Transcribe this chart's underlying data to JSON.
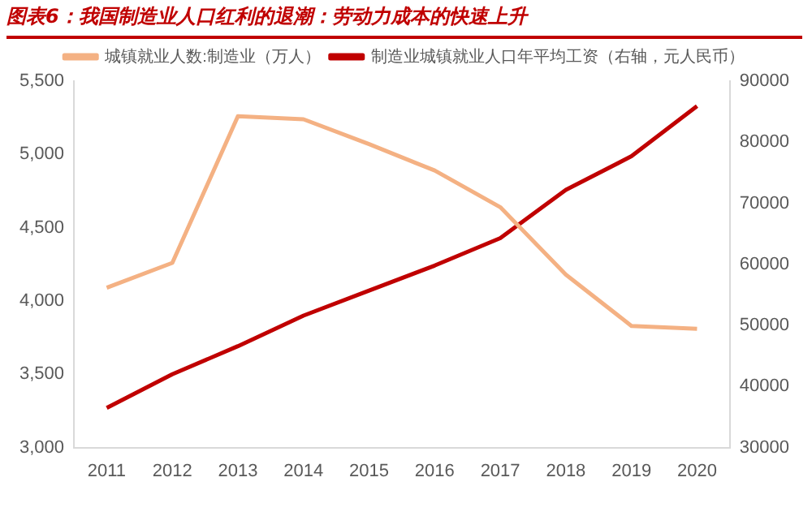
{
  "chart_data": {
    "type": "line",
    "title": "图表6：我国制造业人口红利的退潮：劳动力成本的快速上升",
    "categories": [
      "2011",
      "2012",
      "2013",
      "2014",
      "2015",
      "2016",
      "2017",
      "2018",
      "2019",
      "2020"
    ],
    "series": [
      {
        "name": "城镇就业人数:制造业（万人）",
        "color": "#f4b183",
        "values": [
          4090,
          4260,
          5260,
          5240,
          5070,
          4890,
          4640,
          4180,
          3830,
          3810
        ]
      },
      {
        "name": "制造业城镇就业人口年平均工资（右轴，元人民币）",
        "color": "#c00000",
        "axis": "y2",
        "values": [
          36500,
          42000,
          46600,
          51600,
          55700,
          59800,
          64300,
          72200,
          77700,
          85900
        ]
      }
    ],
    "ylim": [
      3000,
      5500
    ],
    "yticks": [
      {
        "value": 3000,
        "label": "3,000"
      },
      {
        "value": 3500,
        "label": "3,500"
      },
      {
        "value": 4000,
        "label": "4,000"
      },
      {
        "value": 4500,
        "label": "4,500"
      },
      {
        "value": 5000,
        "label": "5,000"
      },
      {
        "value": 5500,
        "label": "5,500"
      }
    ],
    "y2lim": [
      30000,
      90000
    ],
    "y2ticks": [
      30000,
      40000,
      50000,
      60000,
      70000,
      80000,
      90000
    ],
    "grid": false,
    "legend": "top",
    "marker": "none",
    "line_style": "solid"
  }
}
